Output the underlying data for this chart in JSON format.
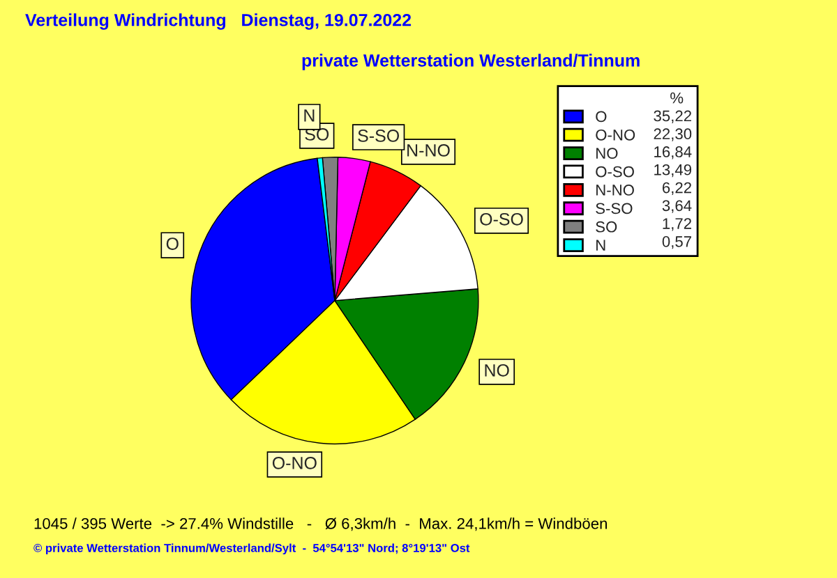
{
  "chart_data": {
    "type": "pie",
    "title": "Verteilung Windrichtung   Dienstag, 19.07.2022",
    "subtitle": "private Wetterstation Westerland/Tinnum",
    "categories": [
      "O",
      "O-NO",
      "NO",
      "O-SO",
      "N-NO",
      "S-SO",
      "SO",
      "N"
    ],
    "values": [
      35.22,
      22.3,
      16.84,
      13.49,
      6.22,
      3.64,
      1.72,
      0.57
    ],
    "value_labels": [
      "35,22",
      "22,30",
      "16,84",
      "13,49",
      "6,22",
      "3,64",
      "1,72",
      "0,57"
    ],
    "colors": [
      "#0000ff",
      "#ffff00",
      "#008000",
      "#ffffff",
      "#ff0000",
      "#ff00ff",
      "#808080",
      "#00ffff"
    ],
    "legend": "top right",
    "legend_title": "%",
    "annotations": [
      "1045 / 395 Werte  -> 27.4% Windstille   -   Ø 6,3km/h  -  Max. 24,1km/h = Windböen",
      "© private Wetterstation Tinnum/Westerland/Sylt  -  54°54'13\" Nord; 8°19'13\" Ost"
    ]
  }
}
